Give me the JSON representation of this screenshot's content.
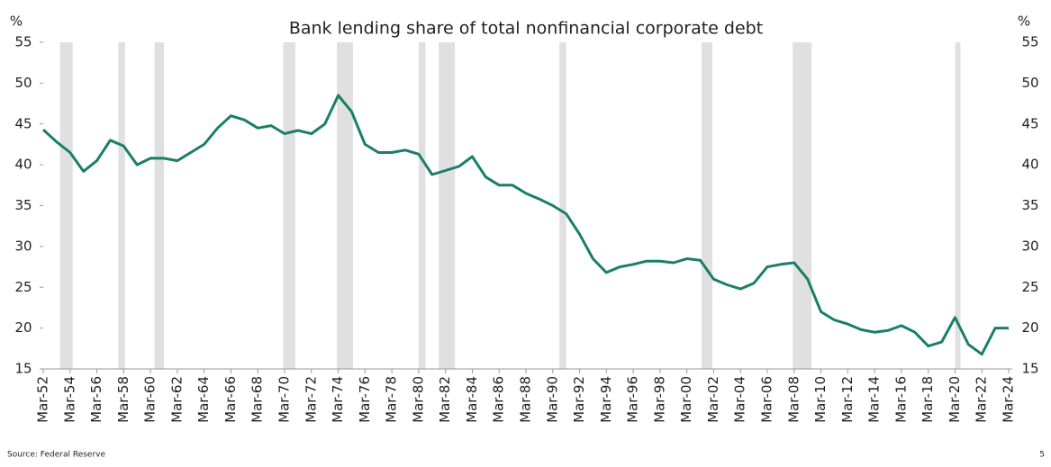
{
  "chart_data": {
    "type": "line",
    "title": "Bank lending share of total nonfinancial corporate debt",
    "y_label": "%",
    "y2_label": "%",
    "categories": [
      "Mar-52",
      null,
      "Mar-54",
      null,
      "Mar-56",
      null,
      "Mar-58",
      null,
      "Mar-60",
      null,
      "Mar-62",
      null,
      "Mar-64",
      null,
      "Mar-66",
      null,
      "Mar-68",
      null,
      "Mar-70",
      null,
      "Mar-72",
      null,
      "Mar-74",
      null,
      "Mar-76",
      null,
      "Mar-78",
      null,
      "Mar-80",
      null,
      "Mar-82",
      null,
      "Mar-84",
      null,
      "Mar-86",
      null,
      "Mar-88",
      null,
      "Mar-90",
      null,
      "Mar-92",
      null,
      "Mar-94",
      null,
      "Mar-96",
      null,
      "Mar-98",
      null,
      "Mar-00",
      null,
      "Mar-02",
      null,
      "Mar-04",
      null,
      "Mar-06",
      null,
      "Mar-08",
      null,
      "Mar-10",
      null,
      "Mar-12",
      null,
      "Mar-14",
      null,
      "Mar-16",
      null,
      "Mar-18",
      null,
      "Mar-20",
      null,
      "Mar-22",
      null,
      "Mar-24"
    ],
    "series": [
      {
        "name": "Bank lending share",
        "color": "#1a7f64",
        "values": [
          44.3,
          42.8,
          41.5,
          39.2,
          40.5,
          43.0,
          42.3,
          40.0,
          40.8,
          40.8,
          40.5,
          41.5,
          42.5,
          44.5,
          46.0,
          45.5,
          44.5,
          44.8,
          43.8,
          44.2,
          43.8,
          45.0,
          48.5,
          46.5,
          42.5,
          41.5,
          41.5,
          41.8,
          41.3,
          38.8,
          39.3,
          39.8,
          41.0,
          38.5,
          37.5,
          37.5,
          36.5,
          35.8,
          35.0,
          34.0,
          31.5,
          28.5,
          26.8,
          27.5,
          27.8,
          28.2,
          28.2,
          28.0,
          28.5,
          28.3,
          26.0,
          25.3,
          24.8,
          25.5,
          27.5,
          27.8,
          28.0,
          26.0,
          22.0,
          21.0,
          20.5,
          19.8,
          19.5,
          19.7,
          20.3,
          19.5,
          17.8,
          18.3,
          21.3,
          18.0,
          16.8,
          20.0,
          20.0
        ]
      }
    ],
    "shaded_periods": [
      [
        1.25,
        2.2
      ],
      [
        5.6,
        6.1
      ],
      [
        8.3,
        9.0
      ],
      [
        17.9,
        18.8
      ],
      [
        21.9,
        23.1
      ],
      [
        28.0,
        28.5
      ],
      [
        29.5,
        30.7
      ],
      [
        38.5,
        39.0
      ],
      [
        49.1,
        49.9
      ],
      [
        55.9,
        57.3
      ],
      [
        68.0,
        68.4
      ]
    ],
    "shade_color": "#e0e0e0",
    "ylim": [
      15,
      55
    ],
    "yticks": [
      15,
      20,
      25,
      30,
      35,
      40,
      45,
      50,
      55
    ],
    "y2lim": [
      15,
      55
    ],
    "y2ticks": [
      15,
      20,
      25,
      30,
      35,
      40,
      45,
      50,
      55
    ],
    "grid": false
  },
  "footer": {
    "source": "Source: Federal Reserve",
    "page": "5"
  }
}
